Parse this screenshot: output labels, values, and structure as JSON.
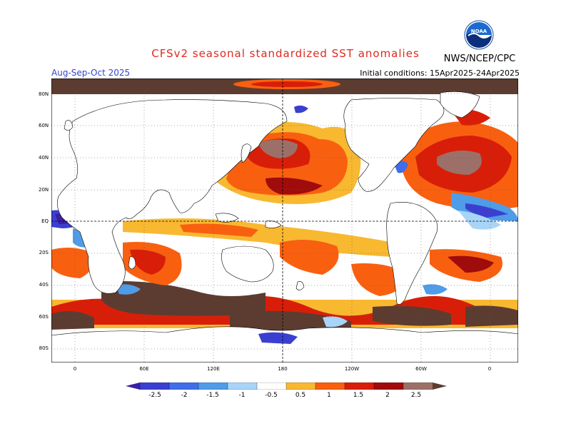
{
  "header": {
    "title": "CFSv2 seasonal standardized SST anomalies",
    "season": "Aug-Sep-Oct 2025",
    "initial_conditions": "Initial conditions: 15Apr2025-24Apr2025",
    "agency": "NWS/NCEP/CPC",
    "logo_text": "NOAA"
  },
  "axes": {
    "lat_labels": [
      "80N",
      "60N",
      "40N",
      "20N",
      "EQ",
      "20S",
      "40S",
      "60S",
      "80S"
    ],
    "lon_labels": [
      "0",
      "60E",
      "120E",
      "180",
      "120W",
      "60W",
      "0"
    ]
  },
  "colorbar": {
    "labels": [
      "-2.5",
      "-2",
      "-1.5",
      "-1",
      "-0.5",
      "0.5",
      "1",
      "1.5",
      "2",
      "2.5"
    ],
    "colors": [
      "#3b1fa3",
      "#3b3fd0",
      "#3f6ee8",
      "#4f9ce8",
      "#a8d4f8",
      "#ffffff",
      "#f8b830",
      "#f86010",
      "#d81e08",
      "#a00c0c",
      "#9c7068",
      "#5c3c30"
    ]
  },
  "colors": {
    "land": "#ffffff",
    "ocean_neutral": "#ffffff",
    "title": "#e0281e",
    "season": "#3344cc"
  }
}
